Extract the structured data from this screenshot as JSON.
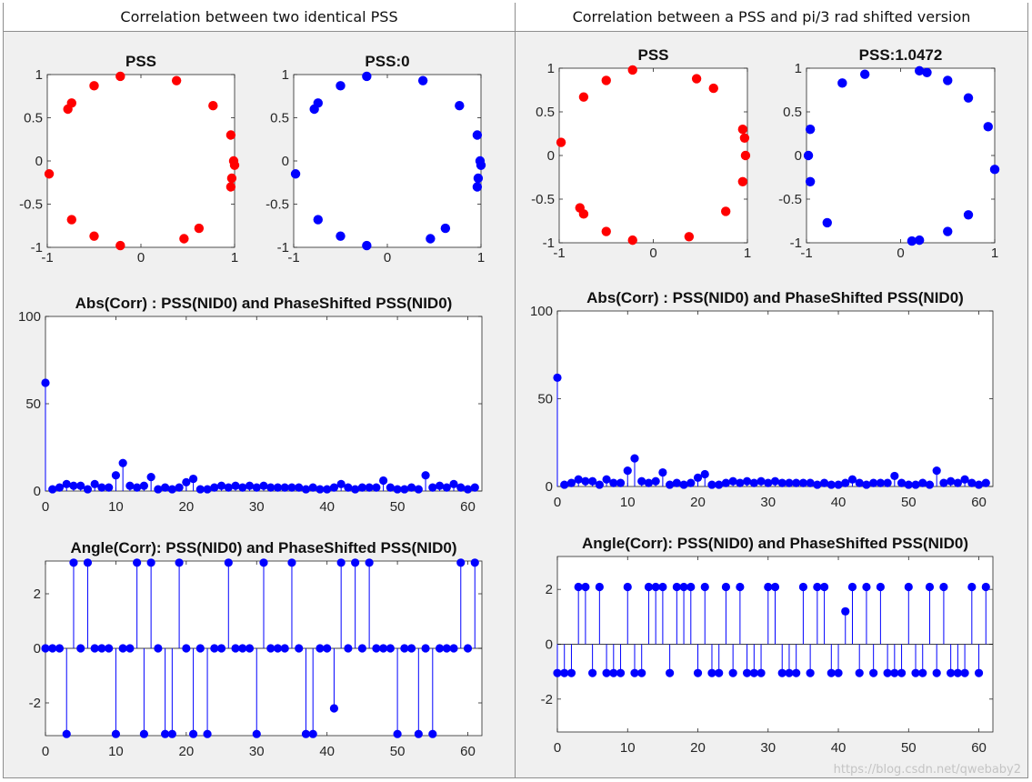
{
  "headers": [
    "Correlation between two identical PSS",
    "Correlation between a PSS and pi/3 rad shifted version"
  ],
  "watermark": "https://blog.csdn.net/qwebaby2",
  "colors": {
    "red": "#ff0000",
    "blue": "#0000ff",
    "panel": "#f0f0f0",
    "axes": "#ffffff"
  },
  "chart_data": [
    {
      "type": "scatter",
      "title": "PSS",
      "color": "red",
      "xlim": [
        -1,
        1
      ],
      "ylim": [
        -1,
        1
      ],
      "xticks": [
        -1,
        0,
        1
      ],
      "yticks": [
        -1,
        -0.5,
        0,
        0.5,
        1
      ],
      "x": [
        -0.98,
        -0.78,
        -0.74,
        -0.5,
        -0.22,
        0.38,
        0.77,
        0.96,
        0.99,
        0.97,
        1.0,
        0.96,
        0.62,
        0.46,
        -0.5,
        -0.74,
        -0.22
      ],
      "y": [
        -0.15,
        0.6,
        0.67,
        0.87,
        0.98,
        0.93,
        0.64,
        0.3,
        0.0,
        -0.2,
        -0.05,
        -0.3,
        -0.78,
        -0.9,
        -0.87,
        -0.68,
        -0.98
      ]
    },
    {
      "type": "scatter",
      "title": "PSS:0",
      "color": "blue",
      "xlim": [
        -1,
        1
      ],
      "ylim": [
        -1,
        1
      ],
      "xticks": [
        -1,
        0,
        1
      ],
      "yticks": [
        -1,
        -0.5,
        0,
        0.5,
        1
      ],
      "x": [
        -0.98,
        -0.78,
        -0.74,
        -0.5,
        -0.22,
        0.38,
        0.77,
        0.96,
        0.99,
        0.97,
        1.0,
        0.96,
        0.62,
        0.46,
        -0.5,
        -0.74,
        -0.22
      ],
      "y": [
        -0.15,
        0.6,
        0.67,
        0.87,
        0.98,
        0.93,
        0.64,
        0.3,
        0.0,
        -0.2,
        -0.05,
        -0.3,
        -0.78,
        -0.9,
        -0.87,
        -0.68,
        -0.98
      ]
    },
    {
      "type": "stem",
      "title": "Abs(Corr) : PSS(NID0) and PhaseShifted PSS(NID0)",
      "color": "blue",
      "xlim": [
        0,
        62
      ],
      "ylim": [
        0,
        100
      ],
      "xticks": [
        0,
        10,
        20,
        30,
        40,
        50,
        60
      ],
      "yticks": [
        0,
        50,
        100
      ],
      "x": [
        0,
        1,
        2,
        3,
        4,
        5,
        6,
        7,
        8,
        9,
        10,
        11,
        12,
        13,
        14,
        15,
        16,
        17,
        18,
        19,
        20,
        21,
        22,
        23,
        24,
        25,
        26,
        27,
        28,
        29,
        30,
        31,
        32,
        33,
        34,
        35,
        36,
        37,
        38,
        39,
        40,
        41,
        42,
        43,
        44,
        45,
        46,
        47,
        48,
        49,
        50,
        51,
        52,
        53,
        54,
        55,
        56,
        57,
        58,
        59,
        60,
        61
      ],
      "values": [
        62,
        1,
        2,
        4,
        3,
        3,
        1,
        4,
        2,
        2,
        9,
        16,
        3,
        2,
        3,
        8,
        1,
        2,
        1,
        2,
        5,
        7,
        1,
        1,
        2,
        3,
        2,
        3,
        2,
        3,
        2,
        3,
        2,
        2,
        2,
        2,
        2,
        1,
        2,
        1,
        1,
        2,
        4,
        2,
        1,
        2,
        2,
        2,
        6,
        2,
        1,
        1,
        2,
        1,
        9,
        2,
        3,
        2,
        4,
        2,
        1,
        2
      ]
    },
    {
      "type": "stem",
      "title": "Angle(Corr): PSS(NID0) and PhaseShifted PSS(NID0)",
      "color": "blue",
      "xlim": [
        0,
        62
      ],
      "ylim": [
        -3.2,
        3.2
      ],
      "xticks": [
        0,
        10,
        20,
        30,
        40,
        50,
        60
      ],
      "yticks": [
        -2,
        0,
        2
      ],
      "x": [
        0,
        1,
        2,
        3,
        4,
        5,
        6,
        7,
        8,
        9,
        10,
        11,
        12,
        13,
        14,
        15,
        16,
        17,
        18,
        19,
        20,
        21,
        22,
        23,
        24,
        25,
        26,
        27,
        28,
        29,
        30,
        31,
        32,
        33,
        34,
        35,
        36,
        37,
        38,
        39,
        40,
        41,
        42,
        43,
        44,
        45,
        46,
        47,
        48,
        49,
        50,
        51,
        52,
        53,
        54,
        55,
        56,
        57,
        58,
        59,
        60,
        61
      ],
      "values": [
        0,
        0,
        0,
        -3.14,
        3.14,
        0,
        3.14,
        0,
        0,
        0,
        -3.14,
        0,
        0,
        3.14,
        -3.14,
        3.14,
        0,
        -3.14,
        -3.14,
        3.14,
        0,
        -3.14,
        0,
        -3.14,
        0,
        0,
        3.14,
        0,
        0,
        0,
        -3.14,
        3.14,
        0,
        0,
        0,
        3.14,
        0,
        -3.14,
        -3.14,
        0,
        0,
        -2.2,
        3.14,
        0,
        3.14,
        0,
        3.14,
        0,
        0,
        0,
        -3.14,
        0,
        0,
        -3.14,
        0,
        -3.14,
        0,
        0,
        0,
        3.14,
        0,
        3.14
      ]
    },
    {
      "type": "scatter",
      "title": "PSS",
      "color": "red",
      "xlim": [
        -1,
        1
      ],
      "ylim": [
        -1,
        1
      ],
      "xticks": [
        -1,
        0,
        1
      ],
      "yticks": [
        -1,
        -0.5,
        0,
        0.5,
        1
      ],
      "x": [
        -0.98,
        -0.74,
        -0.5,
        -0.22,
        0.46,
        0.64,
        0.95,
        0.97,
        0.98,
        -0.78,
        -0.74,
        -0.5,
        -0.22,
        0.38,
        0.77,
        0.95
      ],
      "y": [
        0.15,
        0.67,
        0.86,
        0.98,
        0.88,
        0.77,
        0.3,
        0.2,
        0.0,
        -0.6,
        -0.67,
        -0.87,
        -0.97,
        -0.93,
        -0.64,
        -0.3
      ]
    },
    {
      "type": "scatter",
      "title": "PSS:1.0472",
      "color": "blue",
      "xlim": [
        -1,
        1
      ],
      "ylim": [
        -1,
        1
      ],
      "xticks": [
        -1,
        0,
        1
      ],
      "yticks": [
        -1,
        -0.5,
        0,
        0.5,
        1
      ],
      "x": [
        -0.96,
        -0.98,
        -0.96,
        -0.78,
        -0.62,
        -0.38,
        0.2,
        0.28,
        0.5,
        0.72,
        0.93,
        1.0,
        0.72,
        0.5,
        0.2,
        0.12
      ],
      "y": [
        0.3,
        0.0,
        -0.3,
        -0.77,
        0.83,
        0.93,
        0.97,
        0.95,
        0.86,
        0.66,
        0.33,
        -0.16,
        -0.68,
        -0.87,
        -0.97,
        -0.98
      ]
    },
    {
      "type": "stem",
      "title": "Abs(Corr) : PSS(NID0) and PhaseShifted PSS(NID0)",
      "color": "blue",
      "xlim": [
        0,
        62
      ],
      "ylim": [
        0,
        100
      ],
      "xticks": [
        0,
        10,
        20,
        30,
        40,
        50,
        60
      ],
      "yticks": [
        0,
        50,
        100
      ],
      "x": [
        0,
        1,
        2,
        3,
        4,
        5,
        6,
        7,
        8,
        9,
        10,
        11,
        12,
        13,
        14,
        15,
        16,
        17,
        18,
        19,
        20,
        21,
        22,
        23,
        24,
        25,
        26,
        27,
        28,
        29,
        30,
        31,
        32,
        33,
        34,
        35,
        36,
        37,
        38,
        39,
        40,
        41,
        42,
        43,
        44,
        45,
        46,
        47,
        48,
        49,
        50,
        51,
        52,
        53,
        54,
        55,
        56,
        57,
        58,
        59,
        60,
        61
      ],
      "values": [
        62,
        1,
        2,
        4,
        3,
        3,
        1,
        4,
        2,
        2,
        9,
        16,
        3,
        2,
        3,
        8,
        1,
        2,
        1,
        2,
        5,
        7,
        1,
        1,
        2,
        3,
        2,
        3,
        2,
        3,
        2,
        3,
        2,
        2,
        2,
        2,
        2,
        1,
        2,
        1,
        1,
        2,
        4,
        2,
        1,
        2,
        2,
        2,
        6,
        2,
        1,
        1,
        2,
        1,
        9,
        2,
        3,
        2,
        4,
        2,
        1,
        2
      ]
    },
    {
      "type": "stem",
      "title": "Angle(Corr): PSS(NID0) and PhaseShifted PSS(NID0)",
      "color": "blue",
      "xlim": [
        0,
        62
      ],
      "ylim": [
        -3.2,
        3.2
      ],
      "xticks": [
        0,
        10,
        20,
        30,
        40,
        50,
        60
      ],
      "yticks": [
        -2,
        0,
        2
      ],
      "x": [
        0,
        1,
        2,
        3,
        4,
        5,
        6,
        7,
        8,
        9,
        10,
        11,
        12,
        13,
        14,
        15,
        16,
        17,
        18,
        19,
        20,
        21,
        22,
        23,
        24,
        25,
        26,
        27,
        28,
        29,
        30,
        31,
        32,
        33,
        34,
        35,
        36,
        37,
        38,
        39,
        40,
        41,
        42,
        43,
        44,
        45,
        46,
        47,
        48,
        49,
        50,
        51,
        52,
        53,
        54,
        55,
        56,
        57,
        58,
        59,
        60,
        61
      ],
      "values": [
        -1.05,
        -1.05,
        -1.05,
        2.09,
        2.09,
        -1.05,
        2.09,
        -1.05,
        -1.05,
        -1.05,
        2.09,
        -1.05,
        -1.05,
        2.09,
        2.09,
        2.09,
        -1.05,
        2.09,
        2.09,
        2.09,
        -1.05,
        2.09,
        -1.05,
        -1.05,
        2.09,
        -1.05,
        2.09,
        -1.05,
        -1.05,
        -1.05,
        2.09,
        2.09,
        -1.05,
        -1.05,
        -1.05,
        2.09,
        -1.05,
        2.09,
        2.09,
        -1.05,
        -1.05,
        1.2,
        2.09,
        -1.05,
        2.09,
        -1.05,
        2.09,
        -1.05,
        -1.05,
        -1.05,
        2.09,
        -1.05,
        -1.05,
        2.09,
        -1.05,
        2.09,
        -1.05,
        -1.05,
        -1.05,
        2.09,
        -1.05,
        2.09
      ]
    }
  ]
}
